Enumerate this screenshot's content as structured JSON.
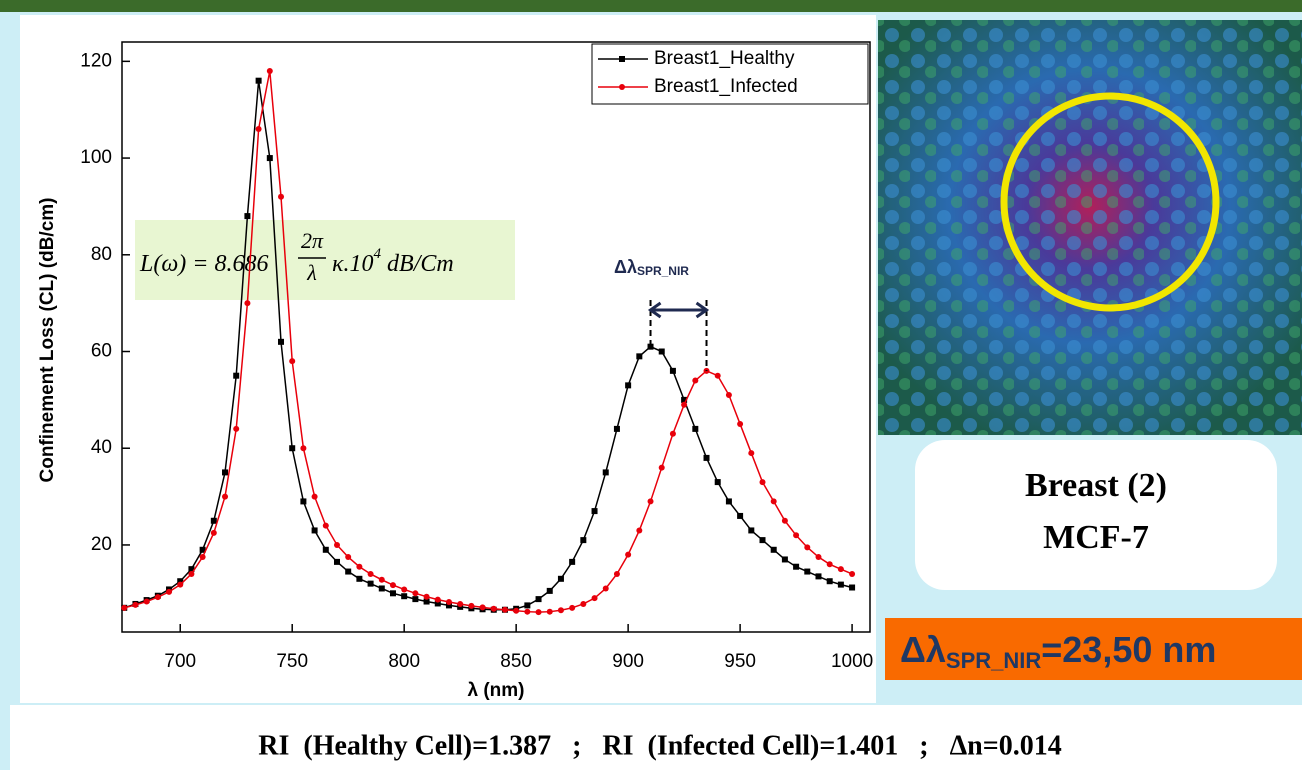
{
  "chart_data": {
    "type": "line",
    "ylabel": "Confinement Loss (CL) (dB/cm)",
    "xlabel": "λ (nm)",
    "x": [
      675,
      680,
      685,
      690,
      695,
      700,
      705,
      710,
      715,
      720,
      725,
      730,
      735,
      740,
      745,
      750,
      755,
      760,
      765,
      770,
      775,
      780,
      785,
      790,
      795,
      800,
      805,
      810,
      815,
      820,
      825,
      830,
      835,
      840,
      845,
      850,
      855,
      860,
      865,
      870,
      875,
      880,
      885,
      890,
      895,
      900,
      905,
      910,
      915,
      920,
      925,
      930,
      935,
      940,
      945,
      950,
      955,
      960,
      965,
      970,
      975,
      980,
      985,
      990,
      995,
      1000
    ],
    "series": [
      {
        "name": "Breast1_Healthy",
        "color": "#000000",
        "marker": "square",
        "values": [
          7,
          7.8,
          8.6,
          9.5,
          10.8,
          12.5,
          15,
          19,
          25,
          35,
          55,
          88,
          116,
          100,
          62,
          40,
          29,
          23,
          19,
          16.5,
          14.5,
          13,
          12,
          11,
          10,
          9.4,
          8.8,
          8.3,
          7.9,
          7.5,
          7.2,
          6.9,
          6.7,
          6.6,
          6.6,
          6.8,
          7.5,
          8.8,
          10.5,
          13,
          16.5,
          21,
          27,
          35,
          44,
          53,
          59,
          61,
          60,
          56,
          50,
          44,
          38,
          33,
          29,
          26,
          23,
          21,
          19,
          17,
          15.5,
          14.5,
          13.5,
          12.5,
          11.8,
          11.2
        ]
      },
      {
        "name": "Breast1_Infected",
        "color": "#e8000b",
        "marker": "circle",
        "values": [
          7,
          7.6,
          8.3,
          9.2,
          10.3,
          11.8,
          14,
          17.5,
          22.5,
          30,
          44,
          70,
          106,
          118,
          92,
          58,
          40,
          30,
          24,
          20,
          17.5,
          15.5,
          14,
          12.8,
          11.7,
          10.8,
          10,
          9.3,
          8.7,
          8.2,
          7.8,
          7.4,
          7.1,
          6.8,
          6.6,
          6.4,
          6.2,
          6.1,
          6.2,
          6.5,
          7,
          7.8,
          9,
          11,
          14,
          18,
          23,
          29,
          36,
          43,
          49,
          54,
          56,
          55,
          51,
          45,
          39,
          33,
          29,
          25,
          22,
          19.5,
          17.5,
          16,
          15,
          14
        ]
      }
    ],
    "xlim": [
      674,
      1008
    ],
    "ylim": [
      2,
      124
    ],
    "xticks": [
      700,
      750,
      800,
      850,
      900,
      950,
      1000
    ],
    "yticks": [
      20,
      40,
      60,
      80,
      100,
      120
    ],
    "legend": "upper right",
    "formula": {
      "lhs": "L(ω) = 8.686",
      "num": "2π",
      "den": "λ",
      "mid": "κ.10",
      "exp": "4",
      "unit": "dB/Cm"
    },
    "shift_annotation": {
      "symbol": "Δλ",
      "subscript": "SPR_NIR"
    }
  },
  "panel": {
    "title": "Breast (2)",
    "subtitle": "MCF-7"
  },
  "shift_box": {
    "symbol": "Δλ",
    "subscript": "SPR_NIR",
    "value": "=23,50 nm"
  },
  "footer": "RI  (Healthy Cell)=1.387   ;   RI  (Infected Cell)=1.401   ;   Δn=0.014"
}
